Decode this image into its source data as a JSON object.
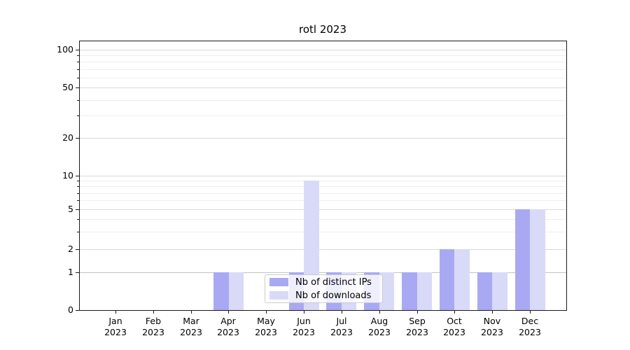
{
  "chart_data": {
    "type": "bar",
    "title": "rotl 2023",
    "categories": [
      "Jan 2023",
      "Feb 2023",
      "Mar 2023",
      "Apr 2023",
      "May 2023",
      "Jun 2023",
      "Jul 2023",
      "Aug 2023",
      "Sep 2023",
      "Oct 2023",
      "Nov 2023",
      "Dec 2023"
    ],
    "series": [
      {
        "name": "Nb of distinct IPs",
        "color": "#a9a9f3",
        "values": [
          0,
          0,
          0,
          1,
          0,
          1,
          1,
          1,
          1,
          2,
          1,
          5
        ]
      },
      {
        "name": "Nb of downloads",
        "color": "#d9d9f8",
        "values": [
          0,
          0,
          0,
          1,
          0,
          9,
          1,
          1,
          1,
          2,
          1,
          5
        ]
      }
    ],
    "xlabel": "",
    "ylabel": "",
    "yscale": "symlog",
    "ylim": [
      0,
      118
    ],
    "yticks_major": [
      0,
      1,
      2,
      5,
      10,
      20,
      50,
      100
    ],
    "yticks_minor": [
      3,
      4,
      6,
      7,
      8,
      9,
      30,
      40,
      60,
      70,
      80,
      90
    ],
    "grid": true,
    "legend_position": "lower center (inside plot)",
    "colors": {
      "spine": "#1a1a1a",
      "grid_major": "#d9d9d9",
      "grid_minor": "#efefef",
      "grid_baseline": "#c2c2c2"
    }
  }
}
